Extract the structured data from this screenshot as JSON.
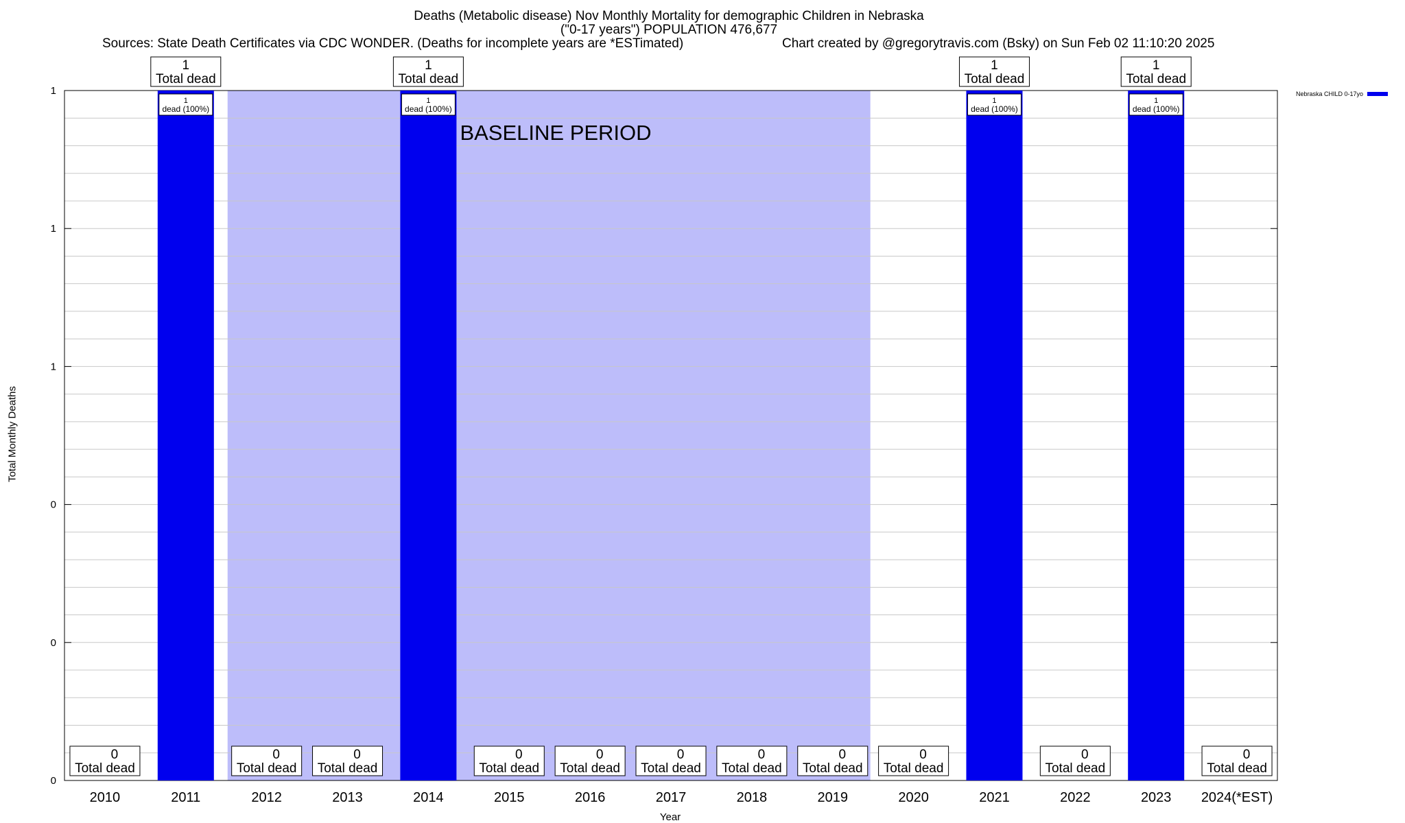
{
  "chart_data": {
    "type": "bar",
    "title": "Deaths (Metabolic disease) Nov Monthly Mortality for demographic Children in Nebraska",
    "subtitle": "(\"0-17 years\") POPULATION 476,677",
    "sources": "Sources: State Death Certificates via CDC WONDER. (Deaths for incomplete years are *ESTimated)",
    "credit": "Chart created by @gregorytravis.com (Bsky) on Sun Feb 02 11:10:20 2025",
    "xlabel": "Year",
    "ylabel": "Total Monthly Deaths",
    "categories": [
      "2010",
      "2011",
      "2012",
      "2013",
      "2014",
      "2015",
      "2016",
      "2017",
      "2018",
      "2019",
      "2020",
      "2021",
      "2022",
      "2023",
      "2024(*EST)"
    ],
    "series": [
      {
        "name": "Nebraska CHILD 0-17yo",
        "color": "#0000ee",
        "values": [
          0,
          1,
          0,
          0,
          1,
          0,
          0,
          0,
          0,
          0,
          0,
          1,
          0,
          1,
          0
        ]
      }
    ],
    "ylim": [
      0,
      1
    ],
    "ytick_labels": [
      "0",
      "0",
      "0",
      "1",
      "1",
      "1"
    ],
    "ytick_values": [
      0,
      0.2,
      0.4,
      0.6,
      0.8,
      1.0
    ],
    "total_label_text": "Total dead",
    "bar_label_text": "dead (100%)",
    "baseline_period": {
      "label": "BASELINE PERIOD",
      "start": "2012",
      "end": "2019",
      "color": "#bdbdfa"
    },
    "grid": true,
    "legend_position": "top-right"
  }
}
